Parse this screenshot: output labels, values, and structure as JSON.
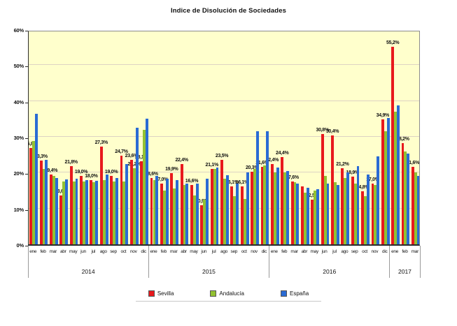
{
  "title": "Indice de Disolución de Sociedades",
  "y_axis": {
    "ticks": [
      "0%",
      "10%",
      "20%",
      "30%",
      "40%",
      "50%",
      "60%"
    ],
    "max": 60
  },
  "x_axis": {
    "years": [
      {
        "label": "2014",
        "count": 12
      },
      {
        "label": "2015",
        "count": 12
      },
      {
        "label": "2016",
        "count": 12
      },
      {
        "label": "2017",
        "count": 3
      }
    ]
  },
  "legend": {
    "items": [
      {
        "label": "Sevilla",
        "color": "#e8191d"
      },
      {
        "label": "Andalucía",
        "color": "#92c131"
      },
      {
        "label": "España",
        "color": "#2a6bd4"
      }
    ]
  },
  "chart_data": {
    "type": "bar",
    "title": "Indice de Disolución de Sociedades",
    "xlabel": "",
    "ylabel": "",
    "ylim": [
      0,
      60
    ],
    "grid": true,
    "plot_bg": "#ffffcc",
    "legend_position": "bottom",
    "categories": [
      "ene",
      "feb",
      "mar",
      "abr",
      "may",
      "jun",
      "jul",
      "ago",
      "sep",
      "oct",
      "nov",
      "dic",
      "ene",
      "feb",
      "mar",
      "abr",
      "may",
      "jun",
      "jul",
      "ago",
      "sep",
      "oct",
      "nov",
      "dic",
      "ene",
      "feb",
      "mar",
      "abr",
      "may",
      "jun",
      "jul",
      "ago",
      "sep",
      "oct",
      "nov",
      "dic",
      "ene",
      "feb",
      "mar"
    ],
    "series": [
      {
        "name": "Sevilla",
        "color": "#e8191d",
        "values": [
          26.8,
          23.3,
          19.4,
          13.6,
          21.8,
          19.0,
          18.0,
          27.3,
          19.0,
          24.7,
          23.6,
          23.1,
          18.6,
          17.0,
          19.9,
          22.4,
          16.6,
          10.9,
          21.1,
          23.5,
          16.1,
          16.1,
          20.3,
          21.6,
          22.4,
          24.4,
          17.6,
          16.2,
          12.5,
          30.8,
          30.4,
          21.2,
          18.9,
          14.8,
          17.0,
          34.9,
          55.2,
          28.2,
          21.6
        ],
        "labels": [
          "26,8%",
          "23,3%",
          "19,4%",
          "13,6%",
          "21,8%",
          "19,0%",
          "18,0%",
          "27,3%",
          "19,0%",
          "24,7%",
          "23,6%",
          "23,1%",
          "18,6%",
          "17,0%",
          "19,9%",
          "22,4%",
          "16,6%",
          "10,9%",
          "21,1%",
          "23,5%",
          "16,1%",
          "16,1%",
          "20,3%",
          "21,6%",
          "22,4%",
          "24,4%",
          "17,6%",
          null,
          "12,5%",
          "30,8%",
          "30,4%",
          "21,2%",
          "18,9%",
          "14,8%",
          "17,0%",
          "34,9%",
          "55,2%",
          "28,2%",
          "21,6%"
        ]
      },
      {
        "name": "Andalucía",
        "color": "#92c131",
        "values": [
          28.8,
          21.0,
          19.0,
          17.5,
          17.5,
          17.5,
          17.3,
          18.0,
          17.5,
          17.5,
          21.2,
          32.0,
          18.0,
          15.0,
          15.6,
          16.5,
          13.6,
          12.5,
          21.0,
          18.3,
          13.5,
          12.7,
          21.0,
          22.0,
          20.0,
          20.0,
          17.3,
          14.4,
          15.0,
          19.0,
          17.3,
          18.5,
          17.0,
          13.5,
          16.5,
          31.5,
          37.0,
          26.0,
          20.0
        ],
        "labels": [
          null,
          null,
          null,
          null,
          null,
          null,
          null,
          null,
          null,
          null,
          "21,2%",
          null,
          null,
          null,
          null,
          null,
          null,
          null,
          null,
          null,
          null,
          null,
          null,
          null,
          null,
          null,
          null,
          null,
          null,
          null,
          null,
          null,
          null,
          null,
          null,
          null,
          null,
          null,
          null
        ]
      },
      {
        "name": "España",
        "color": "#2a6bd4",
        "values": [
          36.5,
          23.5,
          18.6,
          18.1,
          18.4,
          18.0,
          17.8,
          19.5,
          18.5,
          22.5,
          32.5,
          35.0,
          19.0,
          18.3,
          18.0,
          17.0,
          17.0,
          18.4,
          21.5,
          19.3,
          17.0,
          20.0,
          31.5,
          31.5,
          21.4,
          20.5,
          17.0,
          15.8,
          15.4,
          17.0,
          16.6,
          20.0,
          21.8,
          19.5,
          24.5,
          35.3,
          38.8,
          25.4,
          19.0
        ],
        "labels": null
      }
    ]
  }
}
